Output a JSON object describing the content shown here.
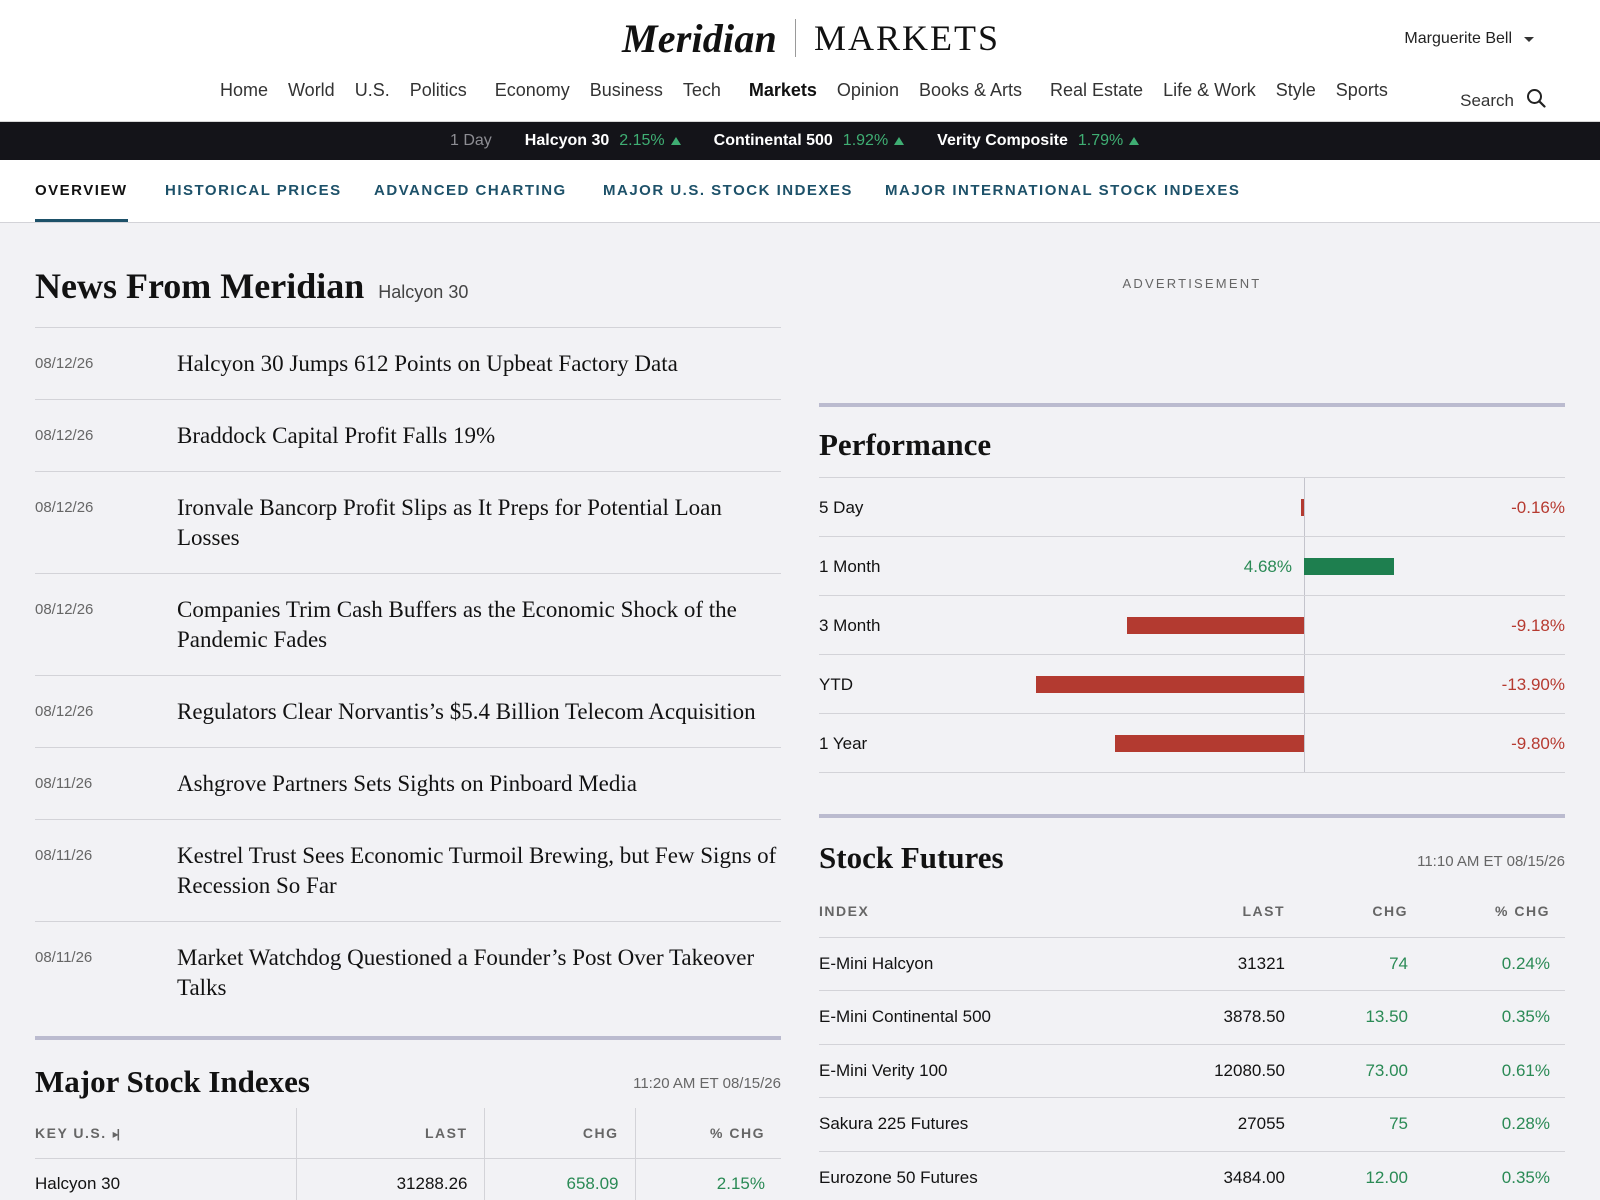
{
  "brand": {
    "name": "Meridian",
    "section": "MARKETS"
  },
  "user": {
    "name": "Marguerite Bell"
  },
  "nav": {
    "items": [
      "Home",
      "World",
      "U.S.",
      "Politics",
      "Economy",
      "Business",
      "Tech",
      "Markets",
      "Opinion",
      "Books & Arts",
      "Real Estate",
      "Life & Work",
      "Style",
      "Sports"
    ],
    "active": "Markets",
    "search_label": "Search"
  },
  "ticker": {
    "period": "1 Day",
    "items": [
      {
        "name": "Halcyon 30",
        "change": "2.15%"
      },
      {
        "name": "Continental 500",
        "change": "1.92%"
      },
      {
        "name": "Verity Composite",
        "change": "1.79%"
      }
    ]
  },
  "subnav": {
    "tabs": [
      "OVERVIEW",
      "HISTORICAL PRICES",
      "ADVANCED CHARTING",
      "MAJOR U.S. STOCK INDEXES",
      "MAJOR INTERNATIONAL STOCK INDEXES"
    ],
    "active": "OVERVIEW"
  },
  "news": {
    "title": "News From Meridian",
    "subtitle": "Halcyon 30",
    "items": [
      {
        "date": "08/12/26",
        "headline": "Halcyon 30 Jumps 612 Points on Upbeat Factory Data"
      },
      {
        "date": "08/12/26",
        "headline": "Braddock Capital Profit Falls 19%"
      },
      {
        "date": "08/12/26",
        "headline": "Ironvale Bancorp Profit Slips as It Preps for Potential Loan Losses"
      },
      {
        "date": "08/12/26",
        "headline": "Companies Trim Cash Buffers as the Economic Shock of the Pandemic Fades"
      },
      {
        "date": "08/12/26",
        "headline": "Regulators Clear Norvantis’s $5.4 Billion Telecom Acquisition"
      },
      {
        "date": "08/11/26",
        "headline": "Ashgrove Partners Sets Sights on Pinboard Media"
      },
      {
        "date": "08/11/26",
        "headline": "Kestrel Trust Sees Economic Turmoil Brewing, but Few Signs of Recession So Far"
      },
      {
        "date": "08/11/26",
        "headline": "Market Watchdog Questioned a Founder’s Post Over Takeover Talks"
      }
    ]
  },
  "advertisement": {
    "label": "ADVERTISEMENT"
  },
  "performance": {
    "title": "Performance",
    "rows": [
      {
        "label": "5 Day",
        "value": -0.16,
        "text": "-0.16%"
      },
      {
        "label": "1 Month",
        "value": 4.68,
        "text": "4.68%"
      },
      {
        "label": "3 Month",
        "value": -9.18,
        "text": "-9.18%"
      },
      {
        "label": "YTD",
        "value": -13.9,
        "text": "-13.90%"
      },
      {
        "label": "1 Year",
        "value": -9.8,
        "text": "-9.80%"
      }
    ],
    "colors": {
      "positive": "#1e7f4f",
      "negative": "#b33a30"
    }
  },
  "major_indexes": {
    "title": "Major Stock Indexes",
    "timestamp": "11:20 AM ET 08/15/26",
    "headers": {
      "key": "KEY U.S.",
      "last": "LAST",
      "chg": "CHG",
      "pct": "% CHG"
    },
    "rows": [
      {
        "name": "Halcyon 30",
        "last": "31288.26",
        "chg": "658.09",
        "pct": "2.15%"
      }
    ]
  },
  "futures": {
    "title": "Stock Futures",
    "timestamp": "11:10 AM ET 08/15/26",
    "headers": {
      "index": "INDEX",
      "last": "LAST",
      "chg": "CHG",
      "pct": "% CHG"
    },
    "rows": [
      {
        "name": "E-Mini Halcyon",
        "last": "31321",
        "chg": "74",
        "pct": "0.24%"
      },
      {
        "name": "E-Mini Continental 500",
        "last": "3878.50",
        "chg": "13.50",
        "pct": "0.35%"
      },
      {
        "name": "E-Mini Verity 100",
        "last": "12080.50",
        "chg": "73.00",
        "pct": "0.61%"
      },
      {
        "name": "Sakura 225 Futures",
        "last": "27055",
        "chg": "75",
        "pct": "0.28%"
      },
      {
        "name": "Eurozone 50 Futures",
        "last": "3484.00",
        "chg": "12.00",
        "pct": "0.35%"
      }
    ]
  }
}
